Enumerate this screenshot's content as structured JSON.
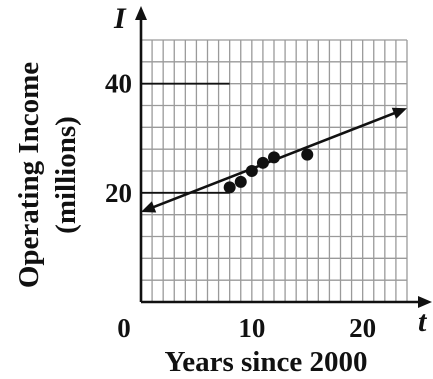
{
  "chart_data": {
    "type": "scatter",
    "xlabel": "Years since 2000",
    "ylabel": "Operating Income (millions)",
    "ylabel_lines": [
      "Operating Income",
      "(millions)"
    ],
    "x_variable": "t",
    "y_variable": "I",
    "xlim": [
      0,
      24
    ],
    "ylim": [
      0,
      48
    ],
    "grid": true,
    "x_grid_step": 1,
    "y_grid_step": 4,
    "x_ticks": [
      0,
      10,
      20
    ],
    "x_tick_labels": [
      "0",
      "10",
      "20"
    ],
    "y_ticks": [
      20,
      40
    ],
    "y_tick_labels": [
      "20",
      "40"
    ],
    "series": [
      {
        "points": [
          {
            "x": 8,
            "y": 21
          },
          {
            "x": 9,
            "y": 22
          },
          {
            "x": 10,
            "y": 24
          },
          {
            "x": 11,
            "y": 25.5
          },
          {
            "x": 12,
            "y": 26.5
          },
          {
            "x": 15,
            "y": 27
          }
        ]
      }
    ],
    "fit_line": {
      "from": {
        "x": 0,
        "y": 16.5
      },
      "to": {
        "x": 24,
        "y": 35.5
      },
      "arrows": "both"
    },
    "colors": {
      "ink": "#111111",
      "grid": "#9a9a9a"
    }
  }
}
